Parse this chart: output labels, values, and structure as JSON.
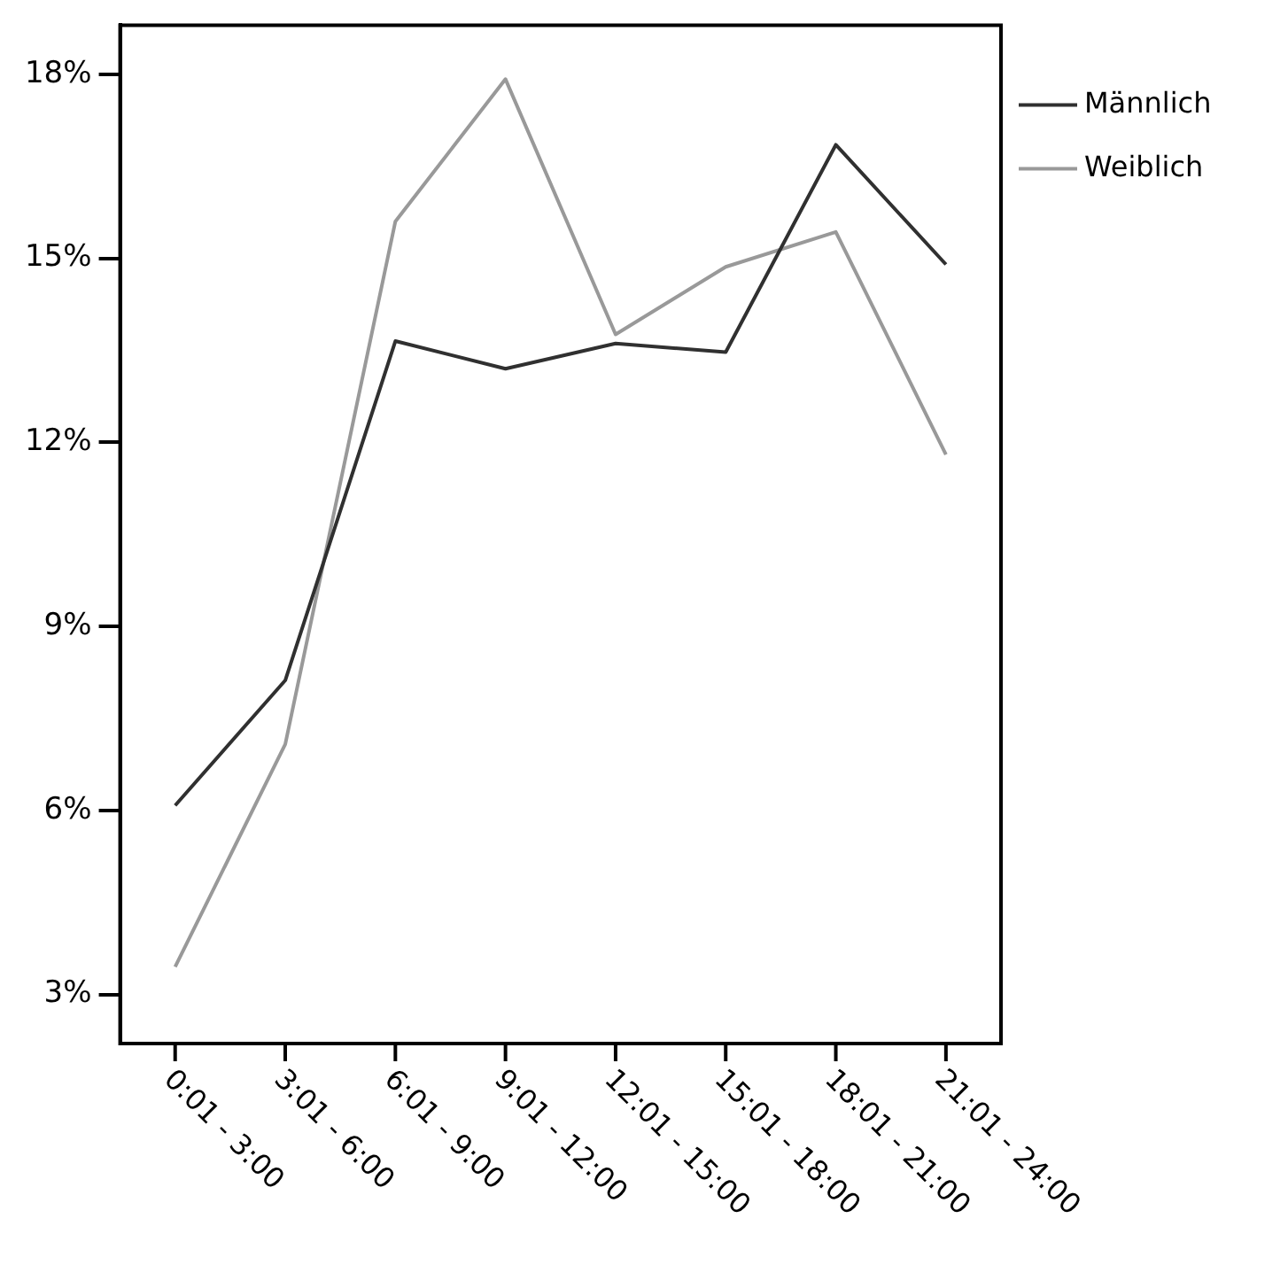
{
  "chart_data": {
    "type": "line",
    "categories": [
      "0:01 - 3:00",
      "3:01 - 6:00",
      "6:01 - 9:00",
      "9:01 - 12:00",
      "12:01 - 15:00",
      "15:01 - 18:00",
      "18:01 - 21:00",
      "21:01 - 24:00"
    ],
    "series": [
      {
        "name": "Männlich",
        "color": "#303030",
        "values": [
          6.08,
          8.12,
          13.65,
          13.2,
          13.61,
          13.47,
          16.85,
          14.9
        ]
      },
      {
        "name": "Weiblich",
        "color": "#999999",
        "values": [
          3.45,
          7.08,
          15.6,
          17.92,
          13.76,
          14.86,
          15.43,
          11.8
        ]
      }
    ],
    "ylim": [
      2.2,
      18.8
    ],
    "yticks": [
      {
        "value": 3,
        "label": "3%"
      },
      {
        "value": 6,
        "label": "6%"
      },
      {
        "value": 9,
        "label": "9%"
      },
      {
        "value": 12,
        "label": "12%"
      },
      {
        "value": 15,
        "label": "15%"
      },
      {
        "value": 18,
        "label": "18%"
      }
    ],
    "grid": false,
    "legend": "top right",
    "marker": "none",
    "line_style": "solid"
  }
}
